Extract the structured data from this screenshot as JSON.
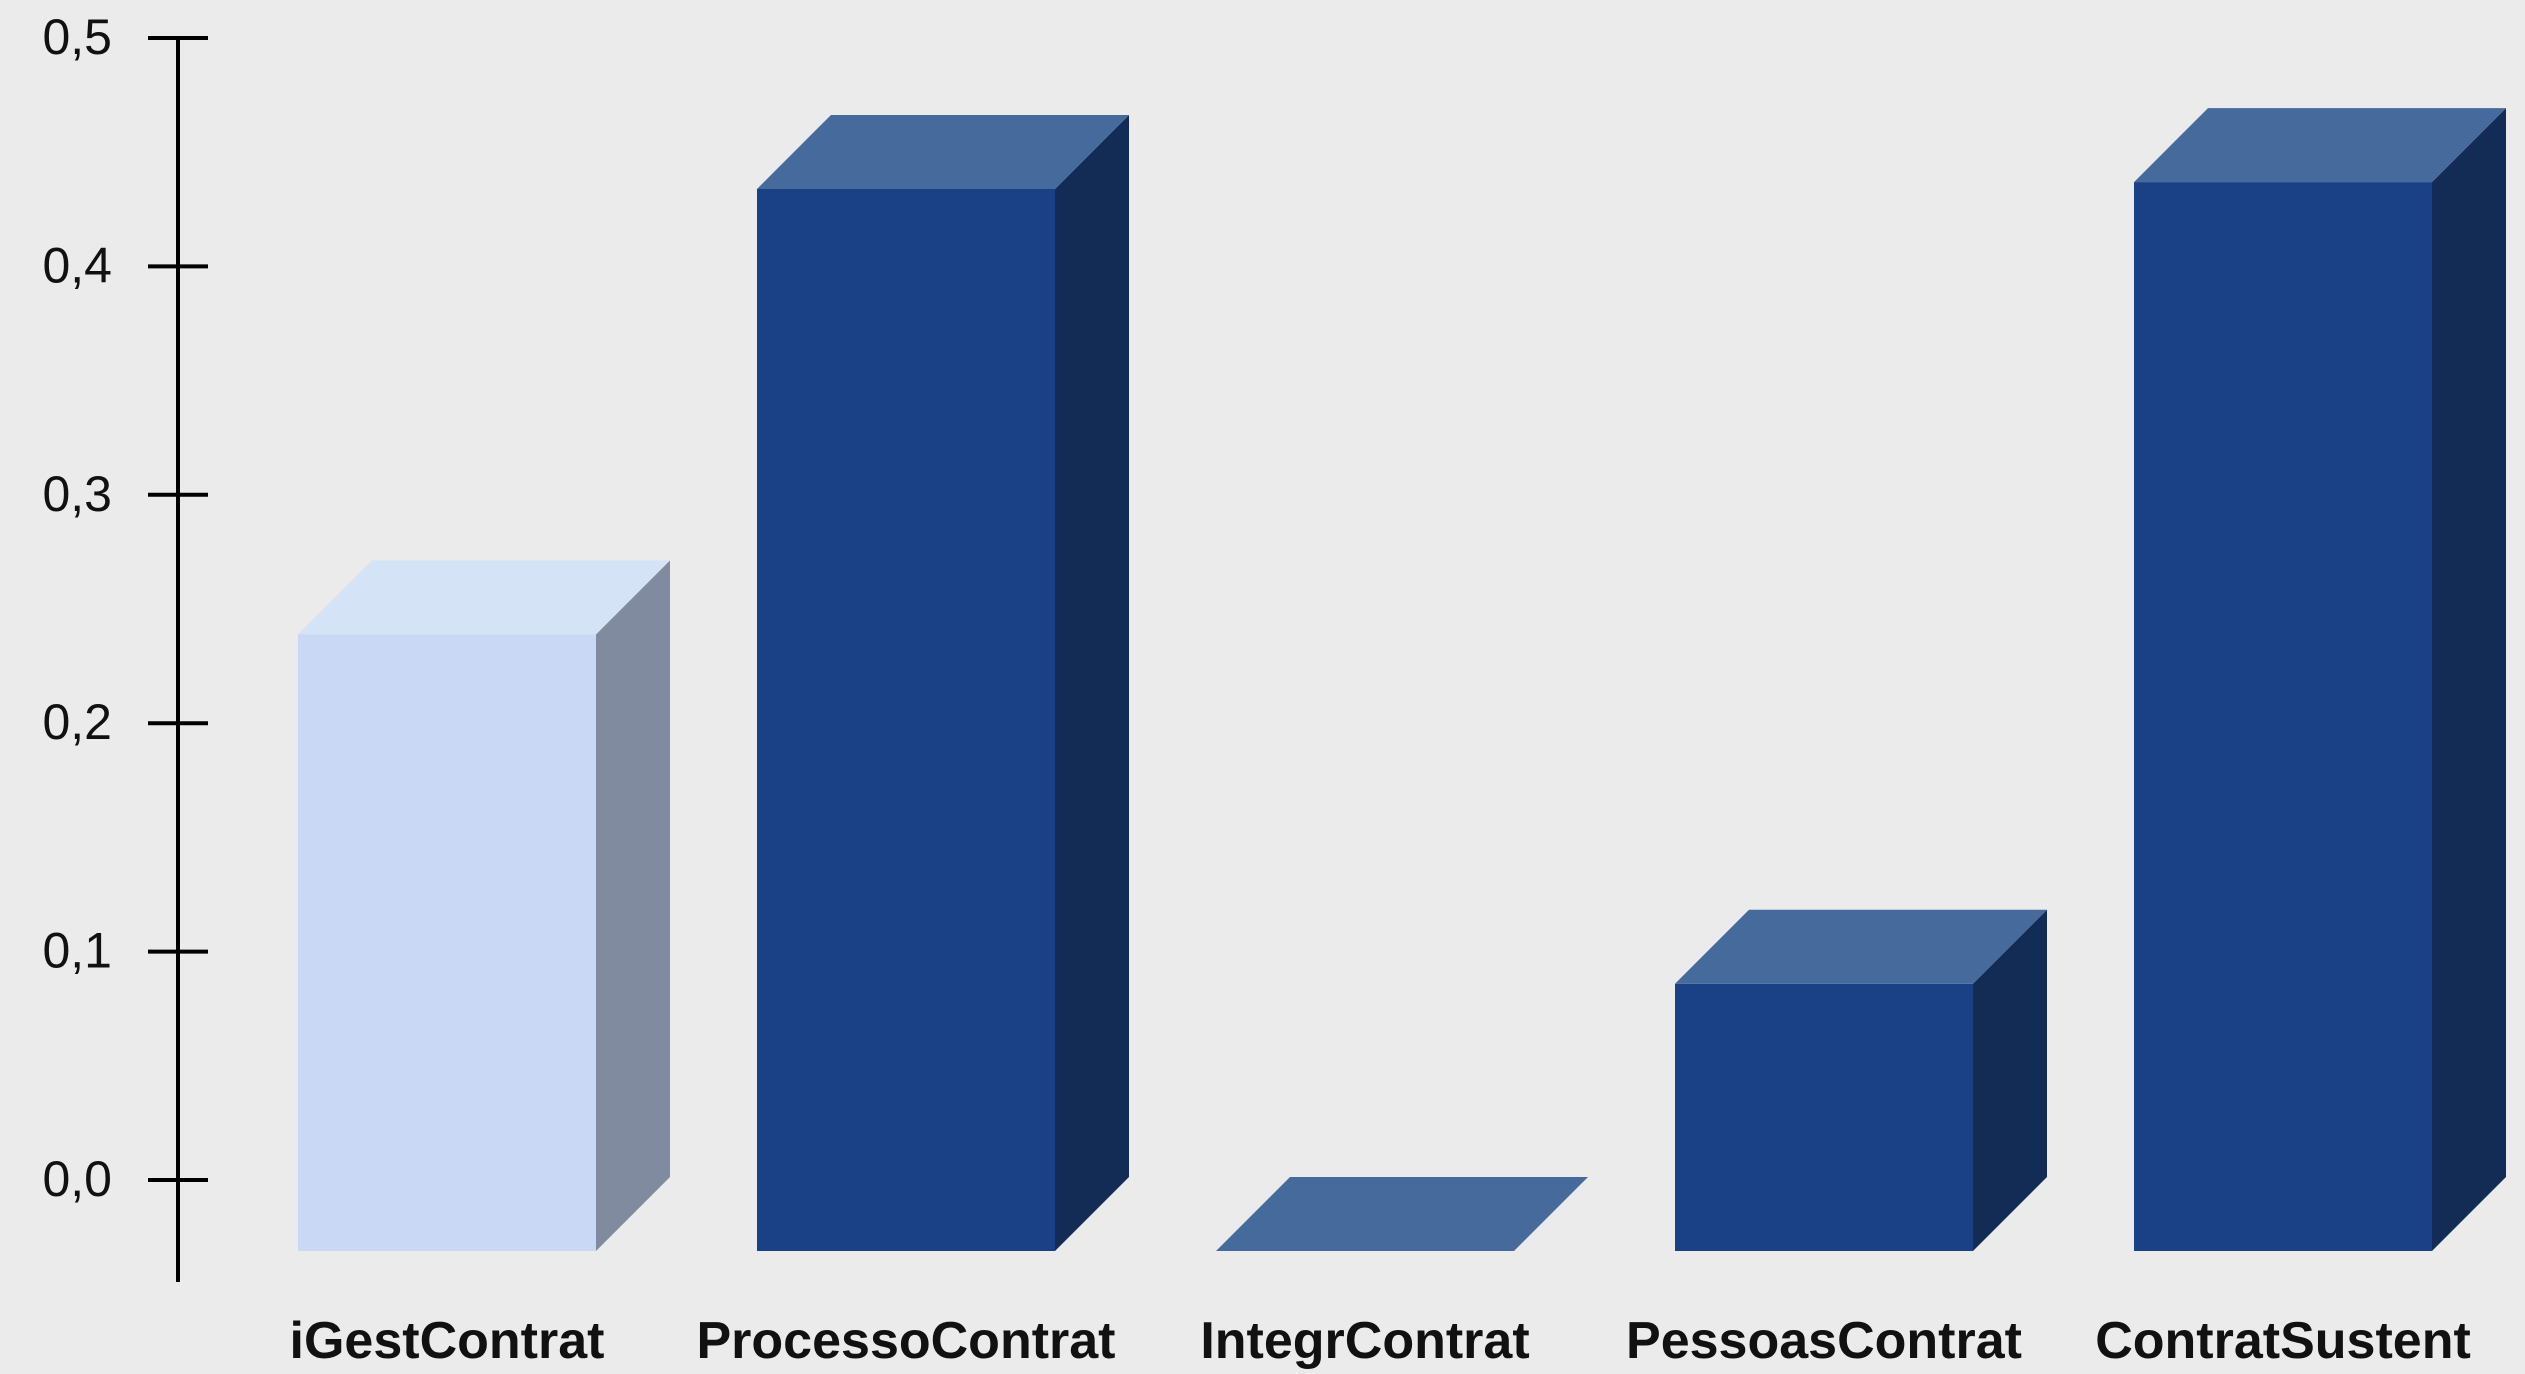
{
  "chart_data": {
    "type": "bar",
    "style": "3d-column",
    "categories": [
      "iGestContrat",
      "ProcessoContrat",
      "IntegrContrat",
      "PessoasContrat",
      "ContratSustent"
    ],
    "values": [
      0.27,
      0.465,
      0.0,
      0.117,
      0.468
    ],
    "ylim": [
      0,
      0.5
    ],
    "yticks": [
      "0,0",
      "0,1",
      "0,2",
      "0,3",
      "0,4",
      "0,5"
    ],
    "ytick_values": [
      0.0,
      0.1,
      0.2,
      0.3,
      0.4,
      0.5
    ],
    "title": "",
    "xlabel": "",
    "ylabel": "",
    "grid": false,
    "legend": "none",
    "highlight_index": 0,
    "colors": {
      "background": "#ebebeb",
      "bar_front": "#1a4086",
      "bar_top": "#456a9b",
      "bar_side": "#122c55",
      "highlight_front": "#c9d8f4",
      "highlight_top": "#d5e3f6",
      "highlight_side": "#808ba0",
      "axis": "#000000"
    }
  }
}
